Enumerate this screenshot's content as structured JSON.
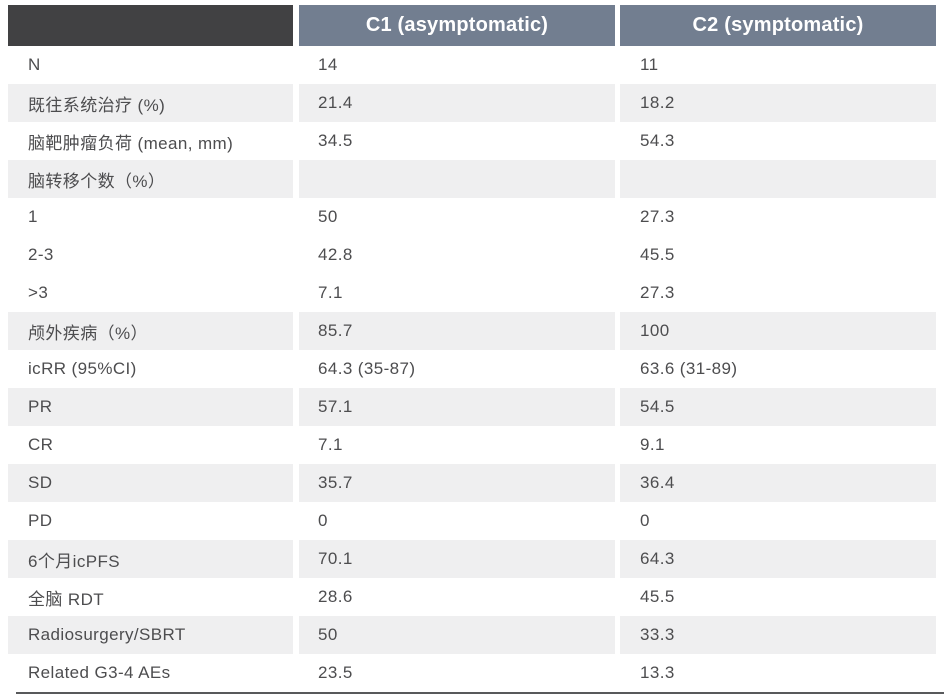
{
  "chart_data": {
    "type": "table",
    "title": "",
    "columns": [
      "",
      "C1 (asymptomatic)",
      "C2 (symptomatic)"
    ],
    "rows": [
      {
        "label": "N",
        "c1": "14",
        "c2": "11",
        "shaded": false
      },
      {
        "label": "既往系统治疗 (%)",
        "c1": "21.4",
        "c2": "18.2",
        "shaded": true
      },
      {
        "label": "脑靶肿瘤负荷 (mean, mm)",
        "c1": "34.5",
        "c2": "54.3",
        "shaded": false
      },
      {
        "label": "脑转移个数（%）",
        "c1": "",
        "c2": "",
        "shaded": true
      },
      {
        "label": "1",
        "c1": "50",
        "c2": "27.3",
        "shaded": false
      },
      {
        "label": "2-3",
        "c1": "42.8",
        "c2": "45.5",
        "shaded": false
      },
      {
        "label": ">3",
        "c1": "7.1",
        "c2": "27.3",
        "shaded": false
      },
      {
        "label": "颅外疾病（%）",
        "c1": "85.7",
        "c2": "100",
        "shaded": true
      },
      {
        "label": "icRR (95%CI)",
        "c1": "64.3 (35-87)",
        "c2": "63.6 (31-89)",
        "shaded": false
      },
      {
        "label": "PR",
        "c1": "57.1",
        "c2": "54.5",
        "shaded": true
      },
      {
        "label": "CR",
        "c1": "7.1",
        "c2": "9.1",
        "shaded": false
      },
      {
        "label": "SD",
        "c1": "35.7",
        "c2": "36.4",
        "shaded": true
      },
      {
        "label": "PD",
        "c1": "0",
        "c2": "0",
        "shaded": false
      },
      {
        "label": "6个月icPFS",
        "c1": "70.1",
        "c2": "64.3",
        "shaded": true
      },
      {
        "label": "全脑 RDT",
        "c1": "28.6",
        "c2": "45.5",
        "shaded": false
      },
      {
        "label": "Radiosurgery/SBRT",
        "c1": "50",
        "c2": "33.3",
        "shaded": true
      },
      {
        "label": "Related G3-4 AEs",
        "c1": "23.5",
        "c2": "13.3",
        "shaded": false
      }
    ]
  },
  "colors": {
    "corner_bg": "#414143",
    "header_bg": "#727E90",
    "header_text": "#FFFFFF",
    "shaded_row": "#EFEFF0",
    "body_text": "#4D4D4F",
    "bottom_border": "#58595B"
  }
}
